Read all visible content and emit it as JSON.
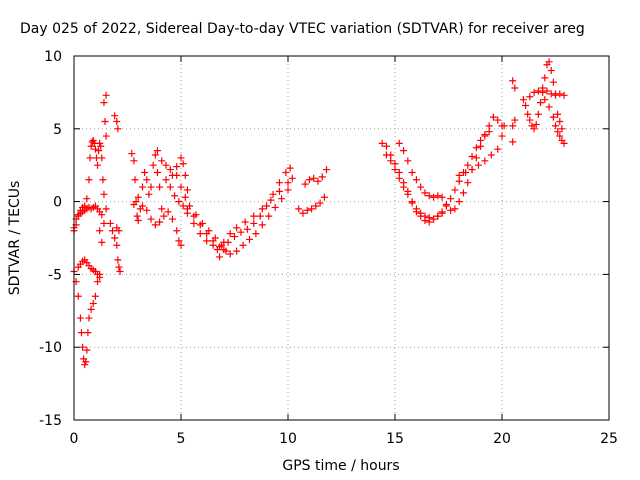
{
  "chart_data": {
    "type": "scatter",
    "title": "Day 025 of 2022, Sidereal Day-to-day VTEC variation (SDTVAR) for receiver areg",
    "xlabel": "GPS time / hours",
    "ylabel": "SDTVAR / TECUs",
    "xlim": [
      0,
      25
    ],
    "ylim": [
      -15,
      10
    ],
    "xticks": [
      0,
      5,
      10,
      15,
      20,
      25
    ],
    "yticks": [
      -15,
      -10,
      -5,
      0,
      5,
      10
    ],
    "grid": true,
    "marker": "+",
    "series": [
      {
        "name": "SDTVAR",
        "color": "#ff0000",
        "points": [
          [
            0.0,
            -2.0
          ],
          [
            0.1,
            -1.6
          ],
          [
            0.2,
            -1.0
          ],
          [
            0.3,
            -0.6
          ],
          [
            0.4,
            -0.4
          ],
          [
            0.5,
            -0.3
          ],
          [
            0.6,
            0.2
          ],
          [
            0.7,
            1.5
          ],
          [
            0.75,
            3.0
          ],
          [
            0.8,
            3.8
          ],
          [
            0.85,
            4.1
          ],
          [
            0.9,
            4.2
          ],
          [
            0.95,
            4.0
          ],
          [
            1.0,
            3.6
          ],
          [
            1.05,
            3.0
          ],
          [
            1.1,
            2.5
          ],
          [
            1.15,
            3.5
          ],
          [
            1.2,
            4.0
          ],
          [
            1.25,
            3.8
          ],
          [
            1.3,
            3.0
          ],
          [
            1.35,
            1.5
          ],
          [
            1.4,
            0.5
          ],
          [
            0.0,
            -1.8
          ],
          [
            0.1,
            -1.2
          ],
          [
            0.2,
            -0.9
          ],
          [
            0.3,
            -0.8
          ],
          [
            0.4,
            -0.7
          ],
          [
            0.5,
            -0.6
          ],
          [
            0.6,
            -0.5
          ],
          [
            0.7,
            -0.4
          ],
          [
            0.8,
            -0.5
          ],
          [
            0.9,
            -0.4
          ],
          [
            1.0,
            -0.3
          ],
          [
            1.1,
            -0.5
          ],
          [
            1.2,
            -0.7
          ],
          [
            1.3,
            -0.9
          ],
          [
            0.0,
            -4.8
          ],
          [
            0.1,
            -5.5
          ],
          [
            0.2,
            -6.5
          ],
          [
            0.3,
            -8.0
          ],
          [
            0.35,
            -9.0
          ],
          [
            0.4,
            -10.0
          ],
          [
            0.45,
            -10.8
          ],
          [
            0.5,
            -11.2
          ],
          [
            0.55,
            -11.0
          ],
          [
            0.6,
            -10.2
          ],
          [
            0.65,
            -9.0
          ],
          [
            0.7,
            -8.0
          ],
          [
            0.8,
            -7.4
          ],
          [
            0.9,
            -7.0
          ],
          [
            1.0,
            -6.5
          ],
          [
            1.1,
            -5.5
          ],
          [
            1.2,
            -5.0
          ],
          [
            0.2,
            -4.5
          ],
          [
            0.3,
            -4.3
          ],
          [
            0.4,
            -4.1
          ],
          [
            0.5,
            -4.0
          ],
          [
            0.6,
            -4.2
          ],
          [
            0.7,
            -4.4
          ],
          [
            0.8,
            -4.6
          ],
          [
            0.9,
            -4.7
          ],
          [
            1.0,
            -4.8
          ],
          [
            1.1,
            -5.0
          ],
          [
            1.2,
            -5.2
          ],
          [
            1.4,
            6.8
          ],
          [
            1.5,
            7.3
          ],
          [
            1.45,
            5.5
          ],
          [
            1.5,
            4.5
          ],
          [
            1.3,
            -2.8
          ],
          [
            1.2,
            -2.0
          ],
          [
            1.4,
            -1.5
          ],
          [
            1.5,
            -0.5
          ],
          [
            1.9,
            5.9
          ],
          [
            2.0,
            5.5
          ],
          [
            2.05,
            5.0
          ],
          [
            1.7,
            -1.5
          ],
          [
            1.8,
            -2.0
          ],
          [
            1.9,
            -2.5
          ],
          [
            2.0,
            -3.0
          ],
          [
            2.05,
            -4.0
          ],
          [
            2.1,
            -4.5
          ],
          [
            2.15,
            -4.8
          ],
          [
            2.0,
            -1.8
          ],
          [
            2.1,
            -2.0
          ],
          [
            2.7,
            3.3
          ],
          [
            2.8,
            2.8
          ],
          [
            2.85,
            1.5
          ],
          [
            2.9,
            0.0
          ],
          [
            2.95,
            -1.0
          ],
          [
            3.0,
            -1.3
          ],
          [
            3.1,
            -0.5
          ],
          [
            3.2,
            1.0
          ],
          [
            3.3,
            2.0
          ],
          [
            3.4,
            1.5
          ],
          [
            3.5,
            0.5
          ],
          [
            3.6,
            1.0
          ],
          [
            3.7,
            2.5
          ],
          [
            3.8,
            3.2
          ],
          [
            3.9,
            2.0
          ],
          [
            4.0,
            1.0
          ],
          [
            4.1,
            -0.5
          ],
          [
            2.8,
            -0.2
          ],
          [
            3.0,
            0.3
          ],
          [
            3.2,
            -0.3
          ],
          [
            3.4,
            -0.6
          ],
          [
            3.6,
            -1.2
          ],
          [
            3.8,
            -1.6
          ],
          [
            4.0,
            -1.4
          ],
          [
            4.2,
            -1.0
          ],
          [
            4.4,
            -0.7
          ],
          [
            4.6,
            -1.2
          ],
          [
            4.8,
            -2.0
          ],
          [
            4.9,
            -2.7
          ],
          [
            5.0,
            -3.0
          ],
          [
            3.9,
            3.5
          ],
          [
            4.1,
            2.8
          ],
          [
            4.3,
            2.5
          ],
          [
            4.5,
            2.2
          ],
          [
            4.6,
            1.8
          ],
          [
            4.8,
            2.4
          ],
          [
            5.0,
            3.0
          ],
          [
            5.1,
            2.6
          ],
          [
            5.2,
            1.8
          ],
          [
            5.3,
            0.8
          ],
          [
            4.3,
            1.5
          ],
          [
            4.5,
            1.0
          ],
          [
            4.7,
            0.4
          ],
          [
            4.9,
            0.0
          ],
          [
            5.1,
            -0.3
          ],
          [
            5.3,
            -0.8
          ],
          [
            5.6,
            -1.5
          ],
          [
            5.9,
            -2.2
          ],
          [
            6.2,
            -2.7
          ],
          [
            6.5,
            -3.0
          ],
          [
            6.8,
            -3.1
          ],
          [
            7.0,
            -2.8
          ],
          [
            7.3,
            -2.2
          ],
          [
            7.6,
            -1.8
          ],
          [
            8.0,
            -1.4
          ],
          [
            8.4,
            -1.0
          ],
          [
            8.8,
            -0.5
          ],
          [
            9.2,
            0.1
          ],
          [
            9.6,
            0.7
          ],
          [
            10.0,
            1.3
          ],
          [
            10.2,
            1.6
          ],
          [
            4.8,
            1.8
          ],
          [
            5.0,
            1.0
          ],
          [
            5.2,
            0.3
          ],
          [
            5.4,
            -0.3
          ],
          [
            5.7,
            -0.9
          ],
          [
            6.0,
            -1.5
          ],
          [
            6.3,
            -2.0
          ],
          [
            6.6,
            -2.5
          ],
          [
            6.9,
            -3.0
          ],
          [
            7.1,
            -3.4
          ],
          [
            7.3,
            -3.6
          ],
          [
            7.6,
            -3.4
          ],
          [
            7.9,
            -3.0
          ],
          [
            8.2,
            -2.6
          ],
          [
            8.5,
            -2.2
          ],
          [
            8.8,
            -1.6
          ],
          [
            9.1,
            -1.0
          ],
          [
            9.4,
            -0.4
          ],
          [
            9.7,
            0.2
          ],
          [
            10.0,
            0.8
          ],
          [
            5.3,
            -0.5
          ],
          [
            5.6,
            -1.0
          ],
          [
            5.9,
            -1.6
          ],
          [
            6.2,
            -2.2
          ],
          [
            6.5,
            -2.7
          ],
          [
            6.7,
            -3.3
          ],
          [
            6.8,
            -3.8
          ],
          [
            7.0,
            -3.3
          ],
          [
            7.2,
            -2.8
          ],
          [
            7.5,
            -2.4
          ],
          [
            7.8,
            -2.1
          ],
          [
            8.1,
            -1.9
          ],
          [
            8.4,
            -1.5
          ],
          [
            8.7,
            -1.0
          ],
          [
            9.0,
            -0.3
          ],
          [
            9.3,
            0.5
          ],
          [
            9.6,
            1.3
          ],
          [
            9.9,
            2.0
          ],
          [
            10.1,
            2.3
          ],
          [
            10.5,
            -0.5
          ],
          [
            10.7,
            -0.8
          ],
          [
            10.9,
            -0.6
          ],
          [
            11.1,
            -0.5
          ],
          [
            11.3,
            -0.3
          ],
          [
            11.5,
            -0.1
          ],
          [
            11.7,
            0.3
          ],
          [
            10.8,
            1.2
          ],
          [
            11.0,
            1.5
          ],
          [
            11.2,
            1.6
          ],
          [
            11.4,
            1.4
          ],
          [
            11.6,
            1.7
          ],
          [
            11.8,
            2.2
          ],
          [
            14.4,
            4.0
          ],
          [
            14.6,
            3.8
          ],
          [
            14.8,
            3.2
          ],
          [
            15.0,
            2.6
          ],
          [
            15.2,
            2.0
          ],
          [
            15.4,
            1.3
          ],
          [
            15.6,
            0.7
          ],
          [
            15.8,
            0.0
          ],
          [
            16.0,
            -0.5
          ],
          [
            16.2,
            -0.8
          ],
          [
            16.4,
            -1.0
          ],
          [
            16.6,
            -1.1
          ],
          [
            16.8,
            -1.2
          ],
          [
            17.0,
            -1.0
          ],
          [
            17.2,
            -0.7
          ],
          [
            17.4,
            -0.3
          ],
          [
            17.6,
            0.2
          ],
          [
            17.8,
            0.8
          ],
          [
            18.0,
            1.4
          ],
          [
            18.2,
            2.0
          ],
          [
            18.4,
            2.5
          ],
          [
            18.6,
            3.1
          ],
          [
            18.8,
            3.7
          ],
          [
            19.0,
            4.2
          ],
          [
            19.2,
            4.5
          ],
          [
            19.4,
            4.8
          ],
          [
            15.2,
            4.0
          ],
          [
            15.4,
            3.5
          ],
          [
            15.6,
            2.8
          ],
          [
            15.8,
            2.0
          ],
          [
            16.0,
            1.5
          ],
          [
            16.2,
            1.0
          ],
          [
            16.4,
            0.6
          ],
          [
            16.6,
            0.4
          ],
          [
            16.8,
            0.3
          ],
          [
            17.0,
            0.4
          ],
          [
            17.2,
            0.3
          ],
          [
            17.4,
            -0.2
          ],
          [
            17.6,
            -0.6
          ],
          [
            17.8,
            -0.5
          ],
          [
            18.0,
            0.0
          ],
          [
            18.2,
            0.6
          ],
          [
            18.4,
            1.3
          ],
          [
            18.6,
            2.2
          ],
          [
            18.8,
            3.0
          ],
          [
            19.0,
            3.8
          ],
          [
            19.2,
            4.6
          ],
          [
            19.4,
            5.2
          ],
          [
            19.6,
            5.8
          ],
          [
            19.8,
            5.6
          ],
          [
            20.0,
            5.2
          ],
          [
            14.6,
            3.2
          ],
          [
            14.8,
            2.8
          ],
          [
            15.0,
            2.2
          ],
          [
            15.2,
            1.6
          ],
          [
            15.4,
            1.0
          ],
          [
            15.6,
            0.5
          ],
          [
            15.8,
            -0.1
          ],
          [
            16.0,
            -0.7
          ],
          [
            16.2,
            -1.0
          ],
          [
            16.4,
            -1.3
          ],
          [
            16.6,
            -1.4
          ],
          [
            16.8,
            -1.2
          ],
          [
            17.0,
            -1.0
          ],
          [
            17.2,
            -0.8
          ],
          [
            18.0,
            1.8
          ],
          [
            18.3,
            2.0
          ],
          [
            18.6,
            2.2
          ],
          [
            18.9,
            2.5
          ],
          [
            19.2,
            2.8
          ],
          [
            19.5,
            3.2
          ],
          [
            19.8,
            3.6
          ],
          [
            20.0,
            4.5
          ],
          [
            20.1,
            5.2
          ],
          [
            20.5,
            8.3
          ],
          [
            20.6,
            7.8
          ],
          [
            20.5,
            5.2
          ],
          [
            20.6,
            5.6
          ],
          [
            20.5,
            4.1
          ],
          [
            21.0,
            7.0
          ],
          [
            21.1,
            6.6
          ],
          [
            21.2,
            6.0
          ],
          [
            21.3,
            5.6
          ],
          [
            21.4,
            5.2
          ],
          [
            21.5,
            5.0
          ],
          [
            21.6,
            5.3
          ],
          [
            21.7,
            6.0
          ],
          [
            21.8,
            6.8
          ],
          [
            21.9,
            7.5
          ],
          [
            22.0,
            8.5
          ],
          [
            22.1,
            9.4
          ],
          [
            22.2,
            9.6
          ],
          [
            22.3,
            9.0
          ],
          [
            22.4,
            8.2
          ],
          [
            22.5,
            7.4
          ],
          [
            21.3,
            7.2
          ],
          [
            21.5,
            7.5
          ],
          [
            21.7,
            7.6
          ],
          [
            21.9,
            7.8
          ],
          [
            22.1,
            7.6
          ],
          [
            22.3,
            7.4
          ],
          [
            22.5,
            7.3
          ],
          [
            22.7,
            7.4
          ],
          [
            22.9,
            7.3
          ],
          [
            22.0,
            7.0
          ],
          [
            22.2,
            6.5
          ],
          [
            22.4,
            5.8
          ],
          [
            22.5,
            5.2
          ],
          [
            22.6,
            4.8
          ],
          [
            22.7,
            4.5
          ],
          [
            22.8,
            4.2
          ],
          [
            22.9,
            4.0
          ],
          [
            22.6,
            6.0
          ],
          [
            22.7,
            5.5
          ],
          [
            22.8,
            5.0
          ]
        ]
      }
    ]
  }
}
